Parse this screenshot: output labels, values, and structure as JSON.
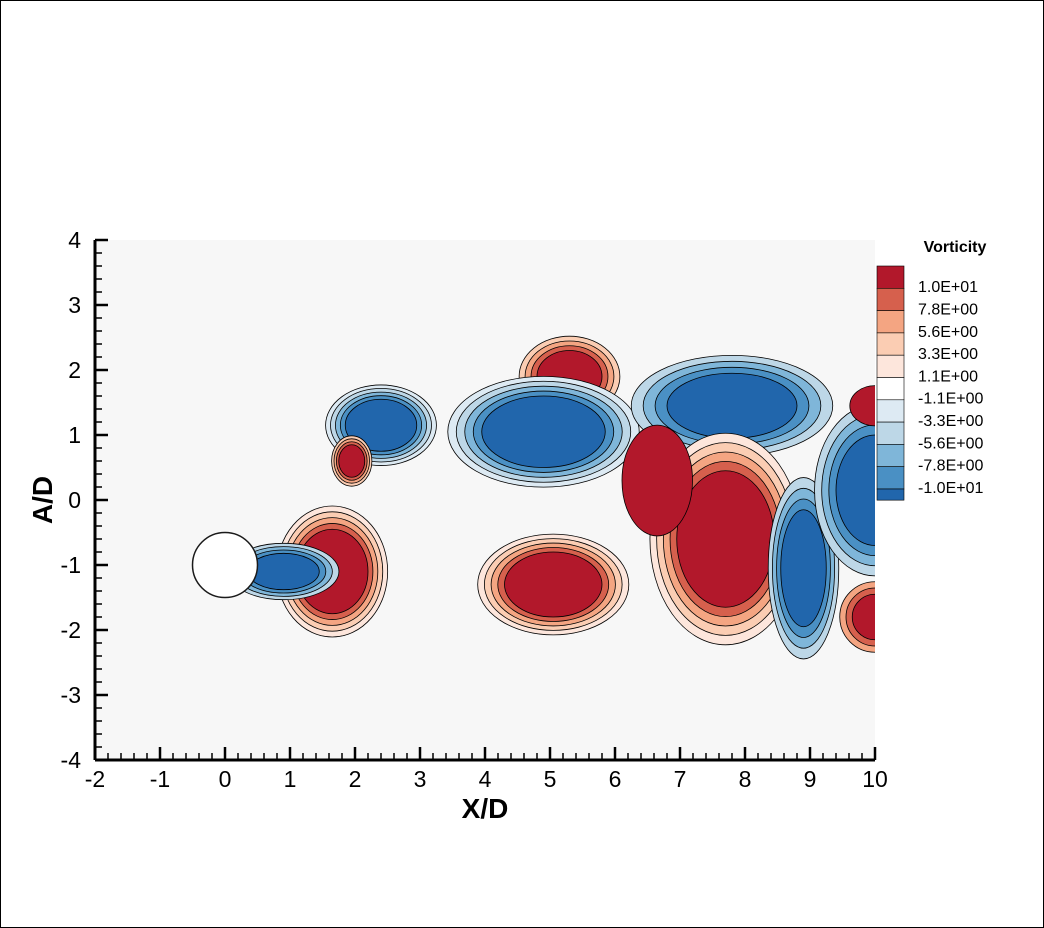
{
  "chart_data": {
    "type": "heatmap",
    "title": "",
    "xlabel": "X/D",
    "ylabel": "A/D",
    "xlim": [
      -2,
      10
    ],
    "ylim": [
      -4,
      4
    ],
    "x_ticks": [
      -2,
      -1,
      0,
      1,
      2,
      3,
      4,
      5,
      6,
      7,
      8,
      9,
      10
    ],
    "y_ticks": [
      -4,
      -3,
      -2,
      -1,
      0,
      1,
      2,
      3,
      4
    ],
    "x_tick_labels": [
      "-2",
      "-1",
      "0",
      "1",
      "2",
      "3",
      "4",
      "5",
      "6",
      "7",
      "8",
      "9",
      "10"
    ],
    "y_tick_labels": [
      "-4",
      "-3",
      "-2",
      "-1",
      "0",
      "1",
      "2",
      "3",
      "4"
    ],
    "grid": false,
    "background_color": "#f7f7f7",
    "cylinder": {
      "center": [
        0,
        -1
      ],
      "diameter": 1,
      "color": "#ffffff"
    },
    "legend": {
      "title": "Vorticity",
      "placement": "right",
      "levels": [
        {
          "label": "1.0E+01",
          "color": "#b2182b"
        },
        {
          "label": "7.8E+00",
          "color": "#d6604d"
        },
        {
          "label": "5.6E+00",
          "color": "#f4a582"
        },
        {
          "label": "3.3E+00",
          "color": "#fbcdb3"
        },
        {
          "label": "1.1E+00",
          "color": "#fde6dc"
        },
        {
          "label": "-1.1E+00",
          "color": "#ffffff"
        },
        {
          "label": "-3.3E+00",
          "color": "#ddeaf3"
        },
        {
          "label": "-5.6E+00",
          "color": "#bdd7e7"
        },
        {
          "label": "-7.8E+00",
          "color": "#7fb6d9"
        },
        {
          "label": "-1.0E+01",
          "color": "#4a90c4"
        }
      ],
      "extreme_colors": {
        "max": "#b2182b",
        "min": "#2166ac"
      }
    },
    "vortices": [
      {
        "sign": "positive",
        "center": [
          1.65,
          -1.1
        ],
        "rx": 0.55,
        "ry": 0.65,
        "levels": 5
      },
      {
        "sign": "negative",
        "center": [
          0.9,
          -1.1
        ],
        "rx": 0.55,
        "ry": 0.28,
        "levels": 4
      },
      {
        "sign": "negative",
        "center": [
          2.4,
          1.15
        ],
        "rx": 0.55,
        "ry": 0.4,
        "levels": 5
      },
      {
        "sign": "positive",
        "center": [
          1.95,
          0.6
        ],
        "rx": 0.2,
        "ry": 0.25,
        "levels": 4
      },
      {
        "sign": "positive",
        "center": [
          5.3,
          1.9
        ],
        "rx": 0.5,
        "ry": 0.4,
        "levels": 4
      },
      {
        "sign": "negative",
        "center": [
          4.9,
          1.05
        ],
        "rx": 0.95,
        "ry": 0.55,
        "levels": 5
      },
      {
        "sign": "negative",
        "center": [
          7.8,
          1.45
        ],
        "rx": 1.0,
        "ry": 0.5,
        "levels": 4
      },
      {
        "sign": "positive",
        "center": [
          5.05,
          -1.3
        ],
        "rx": 0.75,
        "ry": 0.5,
        "levels": 5
      },
      {
        "sign": "positive",
        "center": [
          7.7,
          -0.6
        ],
        "rx": 0.75,
        "ry": 1.05,
        "levels": 5
      },
      {
        "sign": "negative",
        "center": [
          8.9,
          -1.05
        ],
        "rx": 0.35,
        "ry": 0.9,
        "levels": 4
      },
      {
        "sign": "negative",
        "center": [
          10.0,
          0.15
        ],
        "rx": 0.6,
        "ry": 0.85,
        "levels": 4
      },
      {
        "sign": "positive",
        "center": [
          10.0,
          -1.8
        ],
        "rx": 0.35,
        "ry": 0.35,
        "levels": 3
      },
      {
        "sign": "positive",
        "center": [
          6.65,
          0.3
        ],
        "rx": 0.35,
        "ry": 0.55,
        "levels": 1
      },
      {
        "sign": "positive",
        "center": [
          10.0,
          1.45
        ],
        "rx": 0.25,
        "ry": 0.2,
        "levels": 1
      }
    ]
  }
}
